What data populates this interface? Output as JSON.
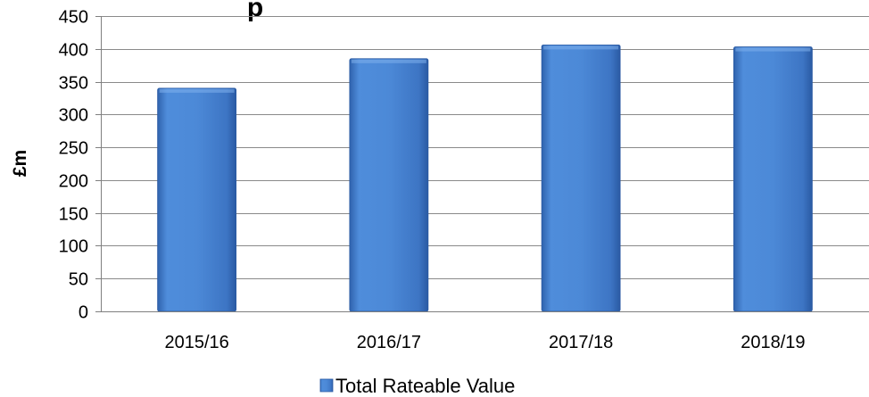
{
  "chart_data": {
    "type": "bar",
    "title": "",
    "visible_title_fragment": "p",
    "categories": [
      "2015/16",
      "2016/17",
      "2017/18",
      "2018/19"
    ],
    "series": [
      {
        "name": "Total Rateable Value",
        "values": [
          340,
          385,
          406,
          403
        ]
      }
    ],
    "xlabel": "",
    "ylabel": "£m",
    "ylim": [
      0,
      450
    ],
    "yticks": [
      0,
      50,
      100,
      150,
      200,
      250,
      300,
      350,
      400,
      450
    ],
    "grid": true,
    "legend_position": "bottom",
    "colors": {
      "bar": "#4a86d4",
      "bar_light": "#6a9fe0",
      "bar_dark": "#2a5ea8",
      "grid": "#7f7f7f",
      "axis": "#7f7f7f"
    }
  }
}
